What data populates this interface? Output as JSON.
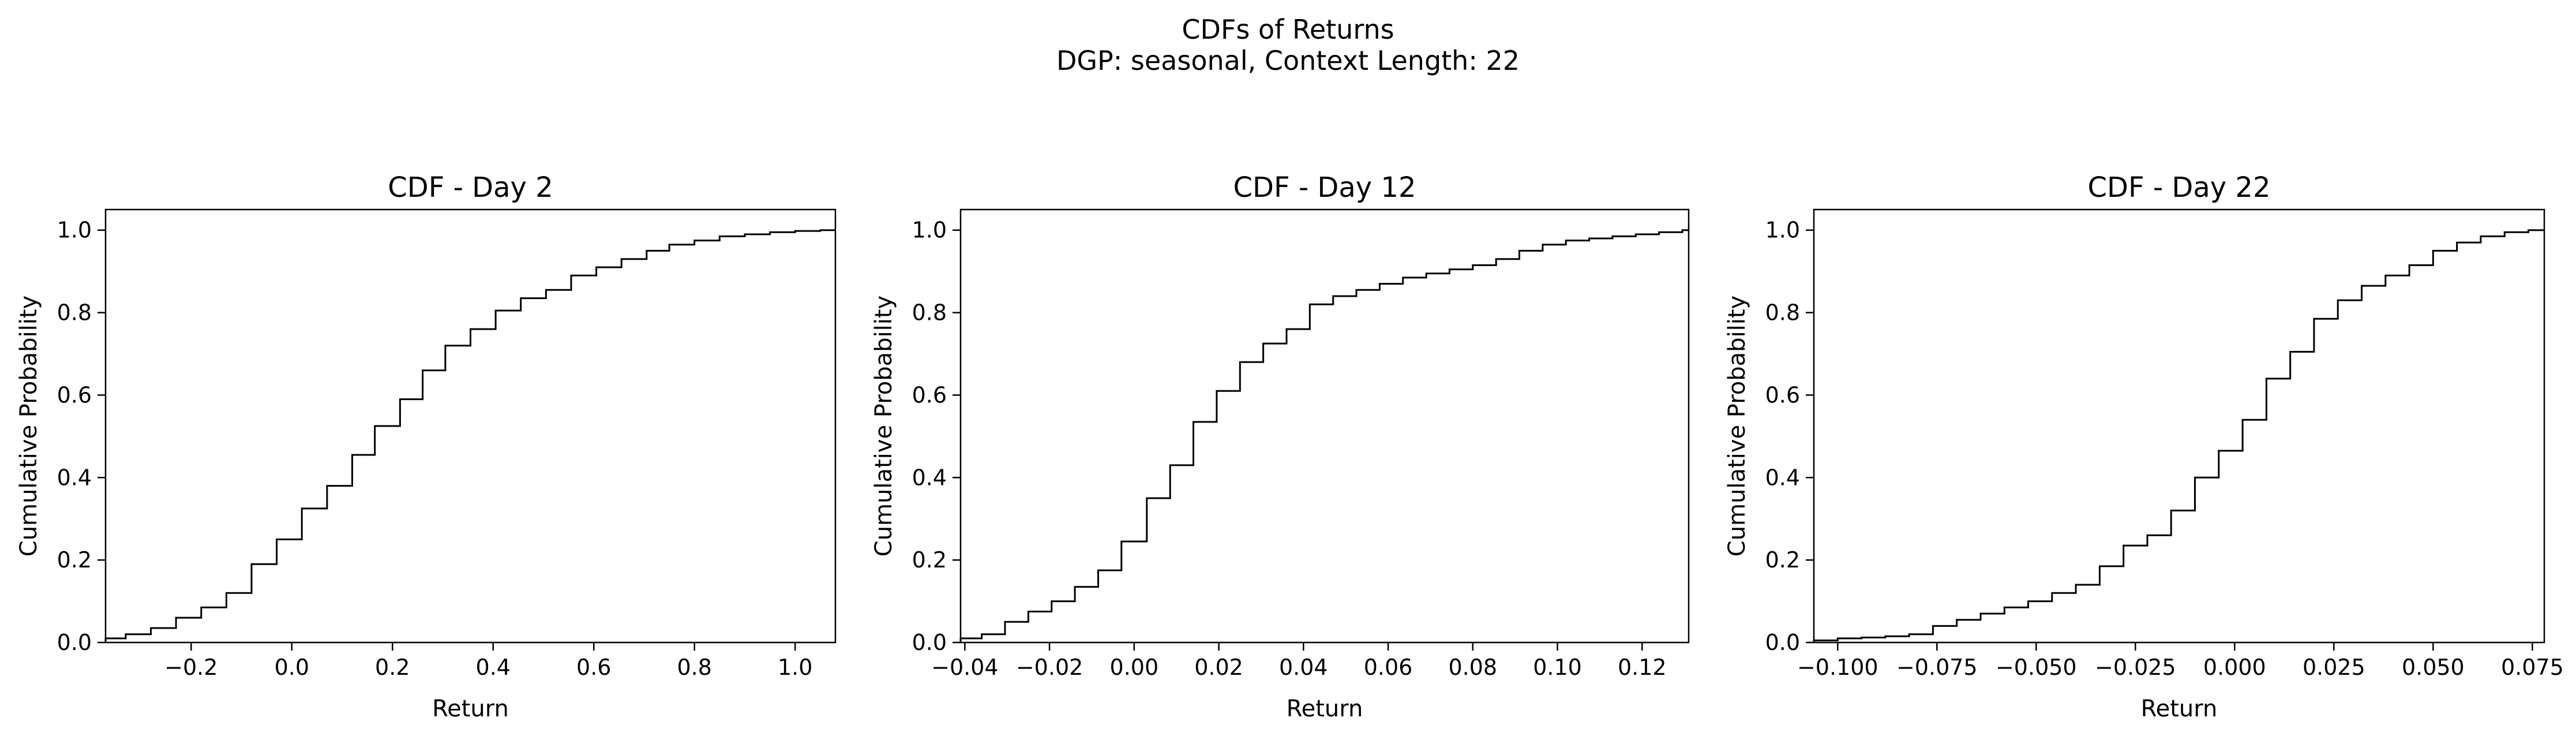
{
  "figure": {
    "title_line1": "CDFs of Returns",
    "title_line2": "DGP: seasonal, Context Length: 22",
    "line_color": "#000000",
    "background": "#ffffff"
  },
  "chart_data": [
    {
      "type": "line",
      "step": true,
      "title": "CDF - Day 2",
      "xlabel": "Return",
      "ylabel": "Cumulative Probability",
      "xlim": [
        -0.37,
        1.08
      ],
      "ylim": [
        0,
        1.05
      ],
      "xticks": [
        -0.2,
        0.0,
        0.2,
        0.4,
        0.6,
        0.8,
        1.0
      ],
      "xtick_labels": [
        "−0.2",
        "0.0",
        "0.2",
        "0.4",
        "0.6",
        "0.8",
        "1.0"
      ],
      "yticks": [
        0.0,
        0.2,
        0.4,
        0.6,
        0.8,
        1.0
      ],
      "ytick_labels": [
        "0.0",
        "0.2",
        "0.4",
        "0.6",
        "0.8",
        "1.0"
      ],
      "grid": false,
      "x": [
        -0.37,
        -0.33,
        -0.28,
        -0.23,
        -0.18,
        -0.13,
        -0.08,
        -0.03,
        0.02,
        0.07,
        0.12,
        0.165,
        0.215,
        0.26,
        0.305,
        0.355,
        0.405,
        0.455,
        0.505,
        0.555,
        0.605,
        0.655,
        0.705,
        0.75,
        0.8,
        0.85,
        0.9,
        0.95,
        1.0,
        1.05
      ],
      "y": [
        0.01,
        0.02,
        0.035,
        0.06,
        0.085,
        0.12,
        0.19,
        0.25,
        0.325,
        0.38,
        0.455,
        0.525,
        0.59,
        0.66,
        0.72,
        0.76,
        0.805,
        0.835,
        0.855,
        0.89,
        0.91,
        0.93,
        0.95,
        0.965,
        0.975,
        0.985,
        0.99,
        0.995,
        0.998,
        1.0
      ]
    },
    {
      "type": "line",
      "step": true,
      "title": "CDF - Day 12",
      "xlabel": "Return",
      "ylabel": "Cumulative Probability",
      "xlim": [
        -0.041,
        0.131
      ],
      "ylim": [
        0,
        1.05
      ],
      "xticks": [
        -0.04,
        -0.02,
        0.0,
        0.02,
        0.04,
        0.06,
        0.08,
        0.1,
        0.12
      ],
      "xtick_labels": [
        "−0.04",
        "−0.02",
        "0.00",
        "0.02",
        "0.04",
        "0.06",
        "0.08",
        "0.10",
        "0.12"
      ],
      "yticks": [
        0.0,
        0.2,
        0.4,
        0.6,
        0.8,
        1.0
      ],
      "ytick_labels": [
        "0.0",
        "0.2",
        "0.4",
        "0.6",
        "0.8",
        "1.0"
      ],
      "grid": false,
      "x": [
        -0.041,
        -0.036,
        -0.0305,
        -0.025,
        -0.0195,
        -0.014,
        -0.0085,
        -0.003,
        0.003,
        0.0085,
        0.014,
        0.0195,
        0.025,
        0.0305,
        0.036,
        0.0415,
        0.047,
        0.0525,
        0.058,
        0.0635,
        0.069,
        0.0745,
        0.08,
        0.0855,
        0.091,
        0.0965,
        0.102,
        0.1075,
        0.113,
        0.1185,
        0.124,
        0.1295
      ],
      "y": [
        0.01,
        0.02,
        0.05,
        0.075,
        0.1,
        0.135,
        0.175,
        0.245,
        0.35,
        0.43,
        0.535,
        0.61,
        0.68,
        0.725,
        0.76,
        0.82,
        0.84,
        0.855,
        0.87,
        0.885,
        0.895,
        0.905,
        0.915,
        0.93,
        0.95,
        0.965,
        0.975,
        0.98,
        0.985,
        0.99,
        0.995,
        1.0
      ]
    },
    {
      "type": "line",
      "step": true,
      "title": "CDF - Day 22",
      "xlabel": "Return",
      "ylabel": "Cumulative Probability",
      "xlim": [
        -0.106,
        0.078
      ],
      "ylim": [
        0,
        1.05
      ],
      "xticks": [
        -0.1,
        -0.075,
        -0.05,
        -0.025,
        0.0,
        0.025,
        0.05,
        0.075
      ],
      "xtick_labels": [
        "−0.100",
        "−0.075",
        "−0.050",
        "−0.025",
        "0.000",
        "0.025",
        "0.050",
        "0.075"
      ],
      "yticks": [
        0.0,
        0.2,
        0.4,
        0.6,
        0.8,
        1.0
      ],
      "ytick_labels": [
        "0.0",
        "0.2",
        "0.4",
        "0.6",
        "0.8",
        "1.0"
      ],
      "grid": false,
      "x": [
        -0.106,
        -0.1,
        -0.094,
        -0.088,
        -0.082,
        -0.076,
        -0.07,
        -0.064,
        -0.058,
        -0.052,
        -0.046,
        -0.04,
        -0.034,
        -0.028,
        -0.022,
        -0.016,
        -0.01,
        -0.004,
        0.002,
        0.008,
        0.014,
        0.02,
        0.026,
        0.032,
        0.038,
        0.044,
        0.05,
        0.056,
        0.062,
        0.068,
        0.074
      ],
      "y": [
        0.005,
        0.01,
        0.012,
        0.015,
        0.02,
        0.04,
        0.055,
        0.07,
        0.085,
        0.1,
        0.12,
        0.14,
        0.185,
        0.235,
        0.26,
        0.32,
        0.4,
        0.465,
        0.54,
        0.64,
        0.705,
        0.785,
        0.83,
        0.865,
        0.89,
        0.915,
        0.95,
        0.97,
        0.985,
        0.995,
        1.0
      ]
    }
  ]
}
